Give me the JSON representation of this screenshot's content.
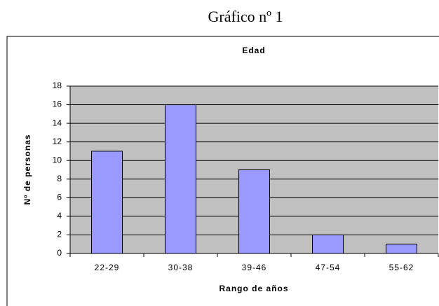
{
  "chart_data": {
    "type": "bar",
    "caption": "Gráfico nº 1",
    "title": "Edad",
    "x_label": "Rango de años",
    "y_label": "Nº de personas",
    "categories": [
      "22-29",
      "30-38",
      "39-46",
      "47-54",
      "55-62"
    ],
    "values": [
      11,
      16,
      9,
      2,
      1
    ],
    "color": "#9999ff",
    "ylim": [
      0,
      18
    ],
    "yticks": [
      0,
      2,
      4,
      6,
      8,
      10,
      12,
      14,
      16,
      18
    ],
    "grid": true
  }
}
